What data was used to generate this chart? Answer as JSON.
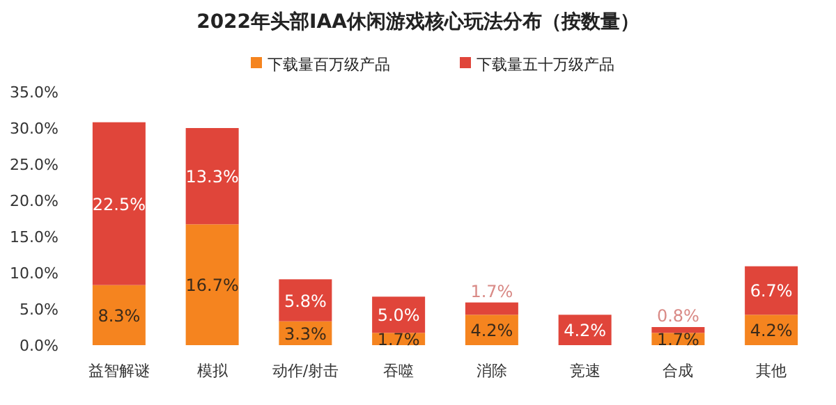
{
  "chart_data": {
    "type": "bar",
    "stacked": true,
    "title": "2022年头部IAA休闲游戏核心玩法分布（按数量）",
    "categories": [
      "益智解谜",
      "模拟",
      "动作/射击",
      "吞噬",
      "消除",
      "竞速",
      "合成",
      "其他"
    ],
    "series": [
      {
        "name": "下载量百万级产品",
        "color": "#f5841f",
        "values": [
          8.3,
          16.7,
          3.3,
          1.7,
          4.2,
          null,
          1.7,
          4.2
        ],
        "value_labels": [
          "8.3%",
          "16.7%",
          "3.3%",
          "1.7%",
          "4.2%",
          null,
          "1.7%",
          "4.2%"
        ]
      },
      {
        "name": "下载量五十万级产品",
        "color": "#e0453a",
        "values": [
          22.5,
          13.3,
          5.8,
          5.0,
          1.7,
          4.2,
          0.8,
          6.7
        ],
        "value_labels": [
          "22.5%",
          "13.3%",
          "5.8%",
          "5.0%",
          "1.7%",
          "4.2%",
          "0.8%",
          "6.7%"
        ]
      }
    ],
    "ylim": [
      0,
      35
    ],
    "yticks": [
      {
        "value": 0,
        "label": "0.0%"
      },
      {
        "value": 5,
        "label": "5.0%"
      },
      {
        "value": 10,
        "label": "10.0%"
      },
      {
        "value": 15,
        "label": "15.0%"
      },
      {
        "value": 20,
        "label": "20.0%"
      },
      {
        "value": 25,
        "label": "25.0%"
      },
      {
        "value": 30,
        "label": "30.0%"
      },
      {
        "value": 35,
        "label": "35.0%"
      }
    ],
    "grid": false,
    "legend": "top"
  }
}
